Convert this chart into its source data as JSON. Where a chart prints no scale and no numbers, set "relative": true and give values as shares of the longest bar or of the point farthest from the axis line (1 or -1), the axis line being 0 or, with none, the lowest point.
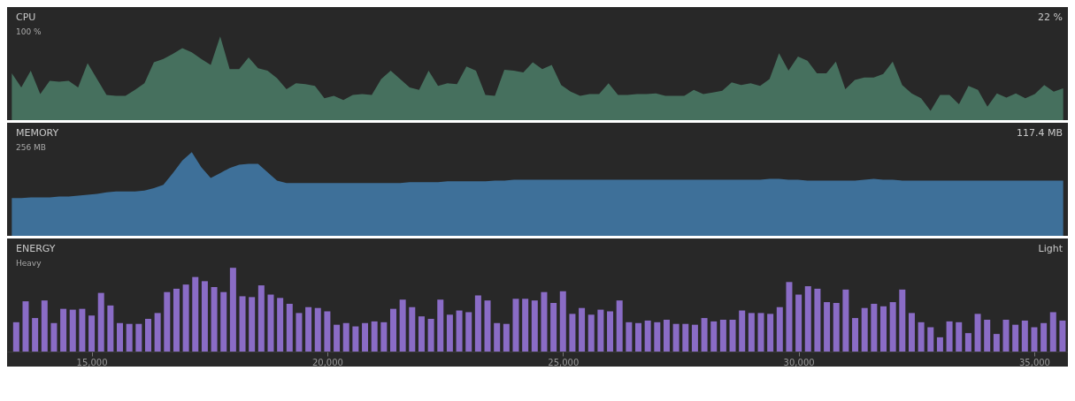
{
  "chart_data": [
    {
      "type": "area",
      "title": "CPU",
      "annotations": [
        "100 %",
        "22 %"
      ],
      "relative": true,
      "categories": [
        null,
        null,
        null,
        null,
        null,
        null,
        null,
        null,
        null,
        null,
        null,
        null,
        null,
        null,
        null,
        null,
        null,
        null,
        null,
        null,
        null,
        null,
        null,
        null,
        null,
        null,
        null,
        null,
        null,
        null,
        null,
        null,
        null,
        null,
        null,
        null,
        null,
        null,
        null,
        null,
        null,
        null,
        null,
        null,
        null,
        null,
        null,
        null,
        null,
        null,
        null,
        null,
        null,
        null,
        null,
        null,
        null,
        null,
        null,
        null,
        null,
        null,
        null,
        null,
        null,
        null,
        null,
        null,
        null,
        null,
        null,
        null,
        null,
        null,
        null,
        null,
        null,
        null,
        null,
        null,
        null,
        null,
        null,
        null,
        null,
        null,
        null,
        null,
        null,
        null,
        null,
        null,
        null,
        null,
        null,
        null,
        null,
        null,
        null,
        null,
        null,
        null,
        null,
        null,
        null,
        null,
        null,
        null,
        null,
        null,
        null,
        null
      ],
      "series": [
        {
          "color": "#46705e",
          "values": [
            0.56,
            0.39,
            0.59,
            0.31,
            0.47,
            0.46,
            0.47,
            0.39,
            0.68,
            0.49,
            0.3,
            0.29,
            0.29,
            0.36,
            0.44,
            0.69,
            0.73,
            0.79,
            0.86,
            0.81,
            0.73,
            0.66,
            1,
            0.61,
            0.61,
            0.75,
            0.62,
            0.59,
            0.5,
            0.37,
            0.44,
            0.43,
            0.41,
            0.26,
            0.29,
            0.24,
            0.3,
            0.31,
            0.3,
            0.49,
            0.59,
            0.49,
            0.39,
            0.36,
            0.59,
            0.41,
            0.44,
            0.43,
            0.64,
            0.59,
            0.3,
            0.29,
            0.6,
            0.59,
            0.57,
            0.69,
            0.61,
            0.66,
            0.42,
            0.34,
            0.29,
            0.31,
            0.31,
            0.44,
            0.3,
            0.3,
            0.31,
            0.31,
            0.32,
            0.29,
            0.29,
            0.29,
            0.36,
            0.31,
            0.33,
            0.35,
            0.45,
            0.42,
            0.44,
            0.41,
            0.49,
            0.8,
            0.59,
            0.76,
            0.71,
            0.56,
            0.56,
            0.7,
            0.37,
            0.48,
            0.51,
            0.51,
            0.55,
            0.7,
            0.42,
            0.32,
            0.26,
            0.11,
            0.3,
            0.3,
            0.19,
            0.41,
            0.36,
            0.16,
            0.32,
            0.27,
            0.32,
            0.26,
            0.31,
            0.42,
            0.34,
            0.38
          ]
        }
      ]
    },
    {
      "type": "area",
      "title": "MEMORY",
      "annotations": [
        "256 MB",
        "117.4 MB"
      ],
      "relative": true,
      "categories": [
        null,
        null,
        null,
        null,
        null,
        null,
        null,
        null,
        null,
        null,
        null,
        null,
        null,
        null,
        null,
        null,
        null,
        null,
        null,
        null,
        null,
        null,
        null,
        null,
        null,
        null,
        null,
        null,
        null,
        null,
        null,
        null,
        null,
        null,
        null,
        null,
        null,
        null,
        null,
        null,
        null,
        null,
        null,
        null,
        null,
        null,
        null,
        null,
        null,
        null,
        null,
        null,
        null,
        null,
        null,
        null,
        null,
        null,
        null,
        null,
        null,
        null,
        null,
        null,
        null,
        null,
        null,
        null,
        null,
        null,
        null,
        null,
        null,
        null,
        null,
        null,
        null,
        null,
        null,
        null,
        null,
        null,
        null,
        null,
        null,
        null,
        null,
        null,
        null,
        null,
        null,
        null,
        null,
        null,
        null,
        null,
        null,
        null,
        null,
        null,
        null,
        null,
        null,
        null,
        null,
        null,
        null,
        null,
        null,
        null,
        null,
        null
      ],
      "series": [
        {
          "color": "#3e7099",
          "values": [
            0.45,
            0.45,
            0.46,
            0.46,
            0.46,
            0.47,
            0.47,
            0.48,
            0.49,
            0.5,
            0.52,
            0.53,
            0.53,
            0.53,
            0.54,
            0.57,
            0.61,
            0.75,
            0.9,
            1,
            0.82,
            0.69,
            0.75,
            0.81,
            0.85,
            0.86,
            0.86,
            0.76,
            0.66,
            0.63,
            0.63,
            0.63,
            0.63,
            0.63,
            0.63,
            0.63,
            0.63,
            0.63,
            0.63,
            0.63,
            0.63,
            0.63,
            0.64,
            0.64,
            0.64,
            0.64,
            0.65,
            0.65,
            0.65,
            0.65,
            0.65,
            0.66,
            0.66,
            0.67,
            0.67,
            0.67,
            0.67,
            0.67,
            0.67,
            0.67,
            0.67,
            0.67,
            0.67,
            0.67,
            0.67,
            0.67,
            0.67,
            0.67,
            0.67,
            0.67,
            0.67,
            0.67,
            0.67,
            0.67,
            0.67,
            0.67,
            0.67,
            0.67,
            0.67,
            0.67,
            0.68,
            0.68,
            0.67,
            0.67,
            0.66,
            0.66,
            0.66,
            0.66,
            0.66,
            0.66,
            0.67,
            0.68,
            0.67,
            0.67,
            0.66,
            0.66,
            0.66,
            0.66,
            0.66,
            0.66,
            0.66,
            0.66,
            0.66,
            0.66,
            0.66,
            0.66,
            0.66,
            0.66,
            0.66,
            0.66,
            0.66,
            0.66
          ]
        }
      ]
    },
    {
      "type": "bar",
      "title": "ENERGY",
      "annotations": [
        "Heavy",
        "Light"
      ],
      "relative": true,
      "tick_labels": "x",
      "xlim": [
        13300,
        35620
      ],
      "xticks": [
        {
          "value": 15000,
          "label": "15,000"
        },
        {
          "value": 20000,
          "label": "20,000"
        },
        {
          "value": 25000,
          "label": "25,000"
        },
        {
          "value": 30000,
          "label": "30,000"
        },
        {
          "value": 35000,
          "label": "35,000"
        }
      ],
      "x": [
        13400,
        13600,
        13800,
        14000,
        14200,
        14400,
        14600,
        14800,
        15000,
        15200,
        15400,
        15600,
        15800,
        16000,
        16200,
        16400,
        16600,
        16800,
        17000,
        17200,
        17400,
        17600,
        17800,
        18000,
        18200,
        18400,
        18600,
        18800,
        19000,
        19200,
        19400,
        19600,
        19800,
        20000,
        20200,
        20400,
        20600,
        20800,
        21000,
        21200,
        21400,
        21600,
        21800,
        22000,
        22200,
        22400,
        22600,
        22800,
        23000,
        23200,
        23400,
        23600,
        23800,
        24000,
        24200,
        24400,
        24600,
        24800,
        25000,
        25200,
        25400,
        25600,
        25800,
        26000,
        26200,
        26400,
        26600,
        26800,
        27000,
        27200,
        27400,
        27600,
        27800,
        28000,
        28200,
        28400,
        28600,
        28800,
        29000,
        29200,
        29400,
        29600,
        29800,
        30000,
        30200,
        30400,
        30600,
        30800,
        31000,
        31200,
        31400,
        31600,
        31800,
        32000,
        32200,
        32400,
        32600,
        32800,
        33000,
        33200,
        33400,
        33600,
        33800,
        34000,
        34200,
        34400,
        34600,
        34800,
        35000,
        35200,
        35400,
        35600
      ],
      "series": [
        {
          "color": "#8a6cc6",
          "values": [
            0.35,
            0.6,
            0.4,
            0.61,
            0.34,
            0.51,
            0.5,
            0.51,
            0.43,
            0.7,
            0.55,
            0.34,
            0.33,
            0.33,
            0.39,
            0.46,
            0.71,
            0.75,
            0.8,
            0.89,
            0.84,
            0.77,
            0.71,
            1,
            0.66,
            0.65,
            0.79,
            0.68,
            0.64,
            0.57,
            0.46,
            0.53,
            0.52,
            0.48,
            0.32,
            0.34,
            0.3,
            0.34,
            0.36,
            0.35,
            0.51,
            0.62,
            0.53,
            0.42,
            0.39,
            0.62,
            0.44,
            0.49,
            0.47,
            0.67,
            0.61,
            0.34,
            0.33,
            0.63,
            0.63,
            0.61,
            0.71,
            0.58,
            0.72,
            0.45,
            0.52,
            0.44,
            0.5,
            0.48,
            0.61,
            0.35,
            0.34,
            0.37,
            0.35,
            0.38,
            0.33,
            0.33,
            0.32,
            0.4,
            0.36,
            0.38,
            0.38,
            0.49,
            0.46,
            0.46,
            0.45,
            0.53,
            0.83,
            0.68,
            0.78,
            0.75,
            0.59,
            0.58,
            0.74,
            0.4,
            0.52,
            0.57,
            0.54,
            0.59,
            0.74,
            0.46,
            0.35,
            0.29,
            0.17,
            0.36,
            0.35,
            0.22,
            0.45,
            0.38,
            0.21,
            0.38,
            0.32,
            0.37,
            0.29,
            0.34,
            0.47,
            0.37
          ]
        }
      ]
    }
  ]
}
